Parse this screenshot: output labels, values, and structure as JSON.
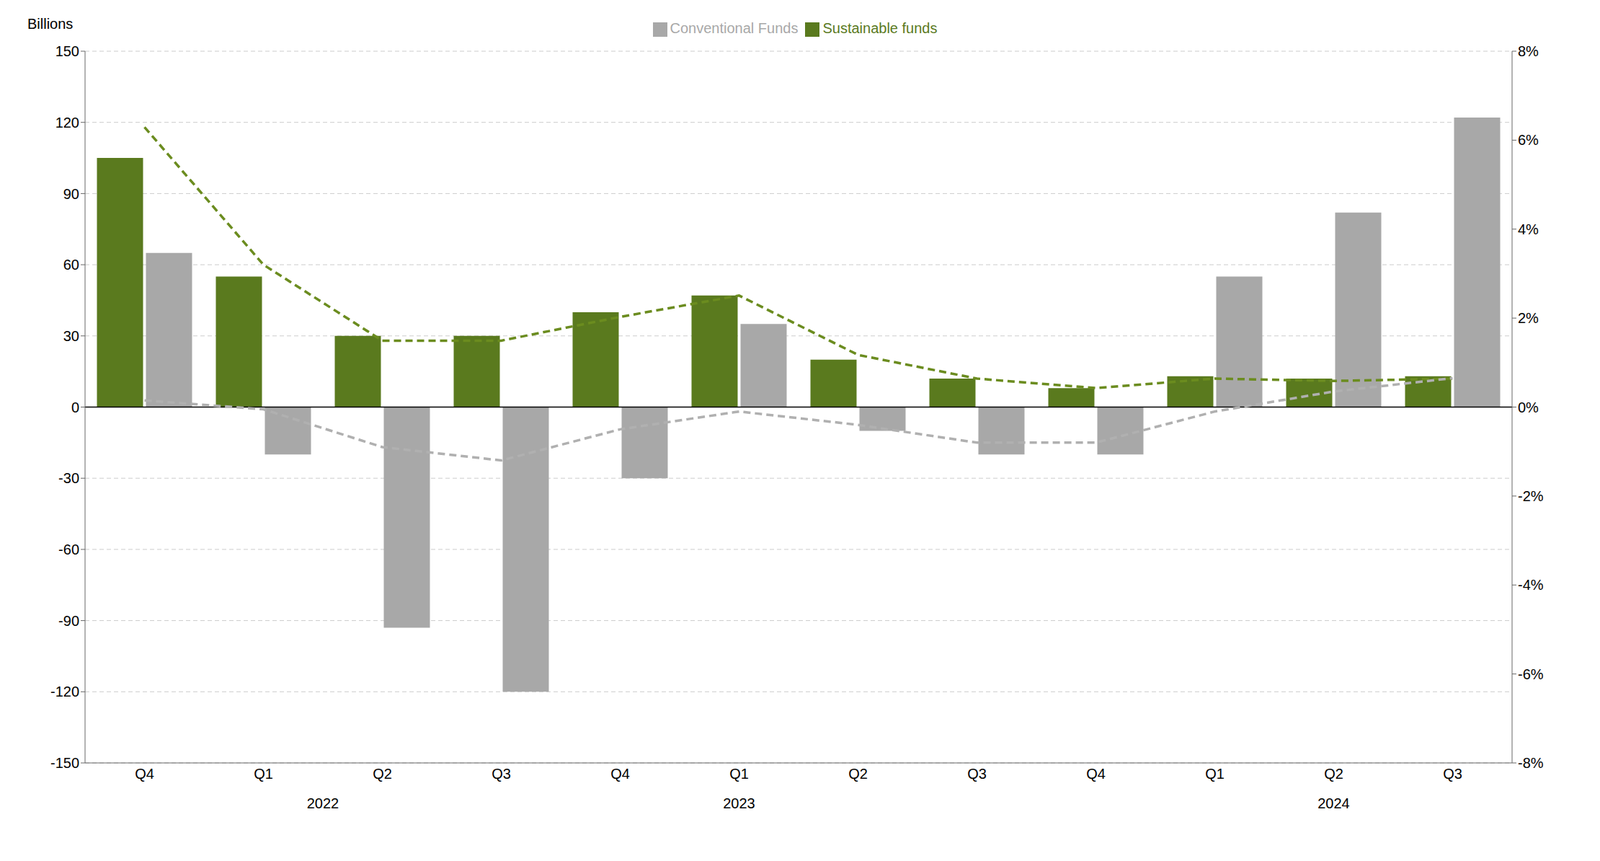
{
  "chart_data": {
    "type": "bar",
    "ylabel": "Billions",
    "categories": [
      "Q4",
      "Q1",
      "Q2",
      "Q3",
      "Q4",
      "Q1",
      "Q2",
      "Q3",
      "Q4",
      "Q1",
      "Q2",
      "Q3"
    ],
    "series": [
      {
        "name": "Sustainable funds",
        "type": "bar",
        "color": "#5a7a1e",
        "values": [
          105,
          55,
          30,
          30,
          40,
          47,
          20,
          12,
          8,
          13,
          12,
          13
        ]
      },
      {
        "name": "Conventional Funds",
        "type": "bar",
        "color": "#a8a8a8",
        "values": [
          65,
          -20,
          -93,
          -120,
          -30,
          35,
          -10,
          -20,
          -20,
          55,
          82,
          122
        ]
      },
      {
        "type": "line",
        "line_style": "dashed",
        "color": "#6b8c1f",
        "values": [
          118,
          60,
          28,
          28,
          38,
          47,
          22,
          12,
          8,
          12,
          11,
          12
        ]
      },
      {
        "type": "line",
        "line_style": "dashed",
        "axis": "y2",
        "color": "#b0b0b0",
        "values": [
          0.15,
          -0.05,
          -0.9,
          -1.2,
          -0.5,
          -0.1,
          -0.4,
          -0.8,
          -0.8,
          -0.1,
          0.35,
          0.65
        ]
      }
    ],
    "ylim": [
      -150,
      150
    ],
    "yticks": [
      -150,
      -120,
      -90,
      -60,
      -30,
      0,
      30,
      60,
      90,
      120,
      150
    ],
    "y2lim": [
      -8,
      8
    ],
    "y2ticks": [
      {
        "value": -8,
        "label": "-8%"
      },
      {
        "value": -6,
        "label": "-6%"
      },
      {
        "value": -4,
        "label": "-4%"
      },
      {
        "value": -2,
        "label": "-2%"
      },
      {
        "value": 0,
        "label": "0%"
      },
      {
        "value": 2,
        "label": "2%"
      },
      {
        "value": 4,
        "label": "4%"
      },
      {
        "value": 6,
        "label": "6%"
      },
      {
        "value": 8,
        "label": "8%"
      }
    ],
    "annotations": [
      {
        "text": "2022",
        "x": 1.5
      },
      {
        "text": "2023",
        "x": 5.0
      },
      {
        "text": "2024",
        "x": 10.0
      }
    ],
    "grid": true,
    "legend": "top"
  }
}
